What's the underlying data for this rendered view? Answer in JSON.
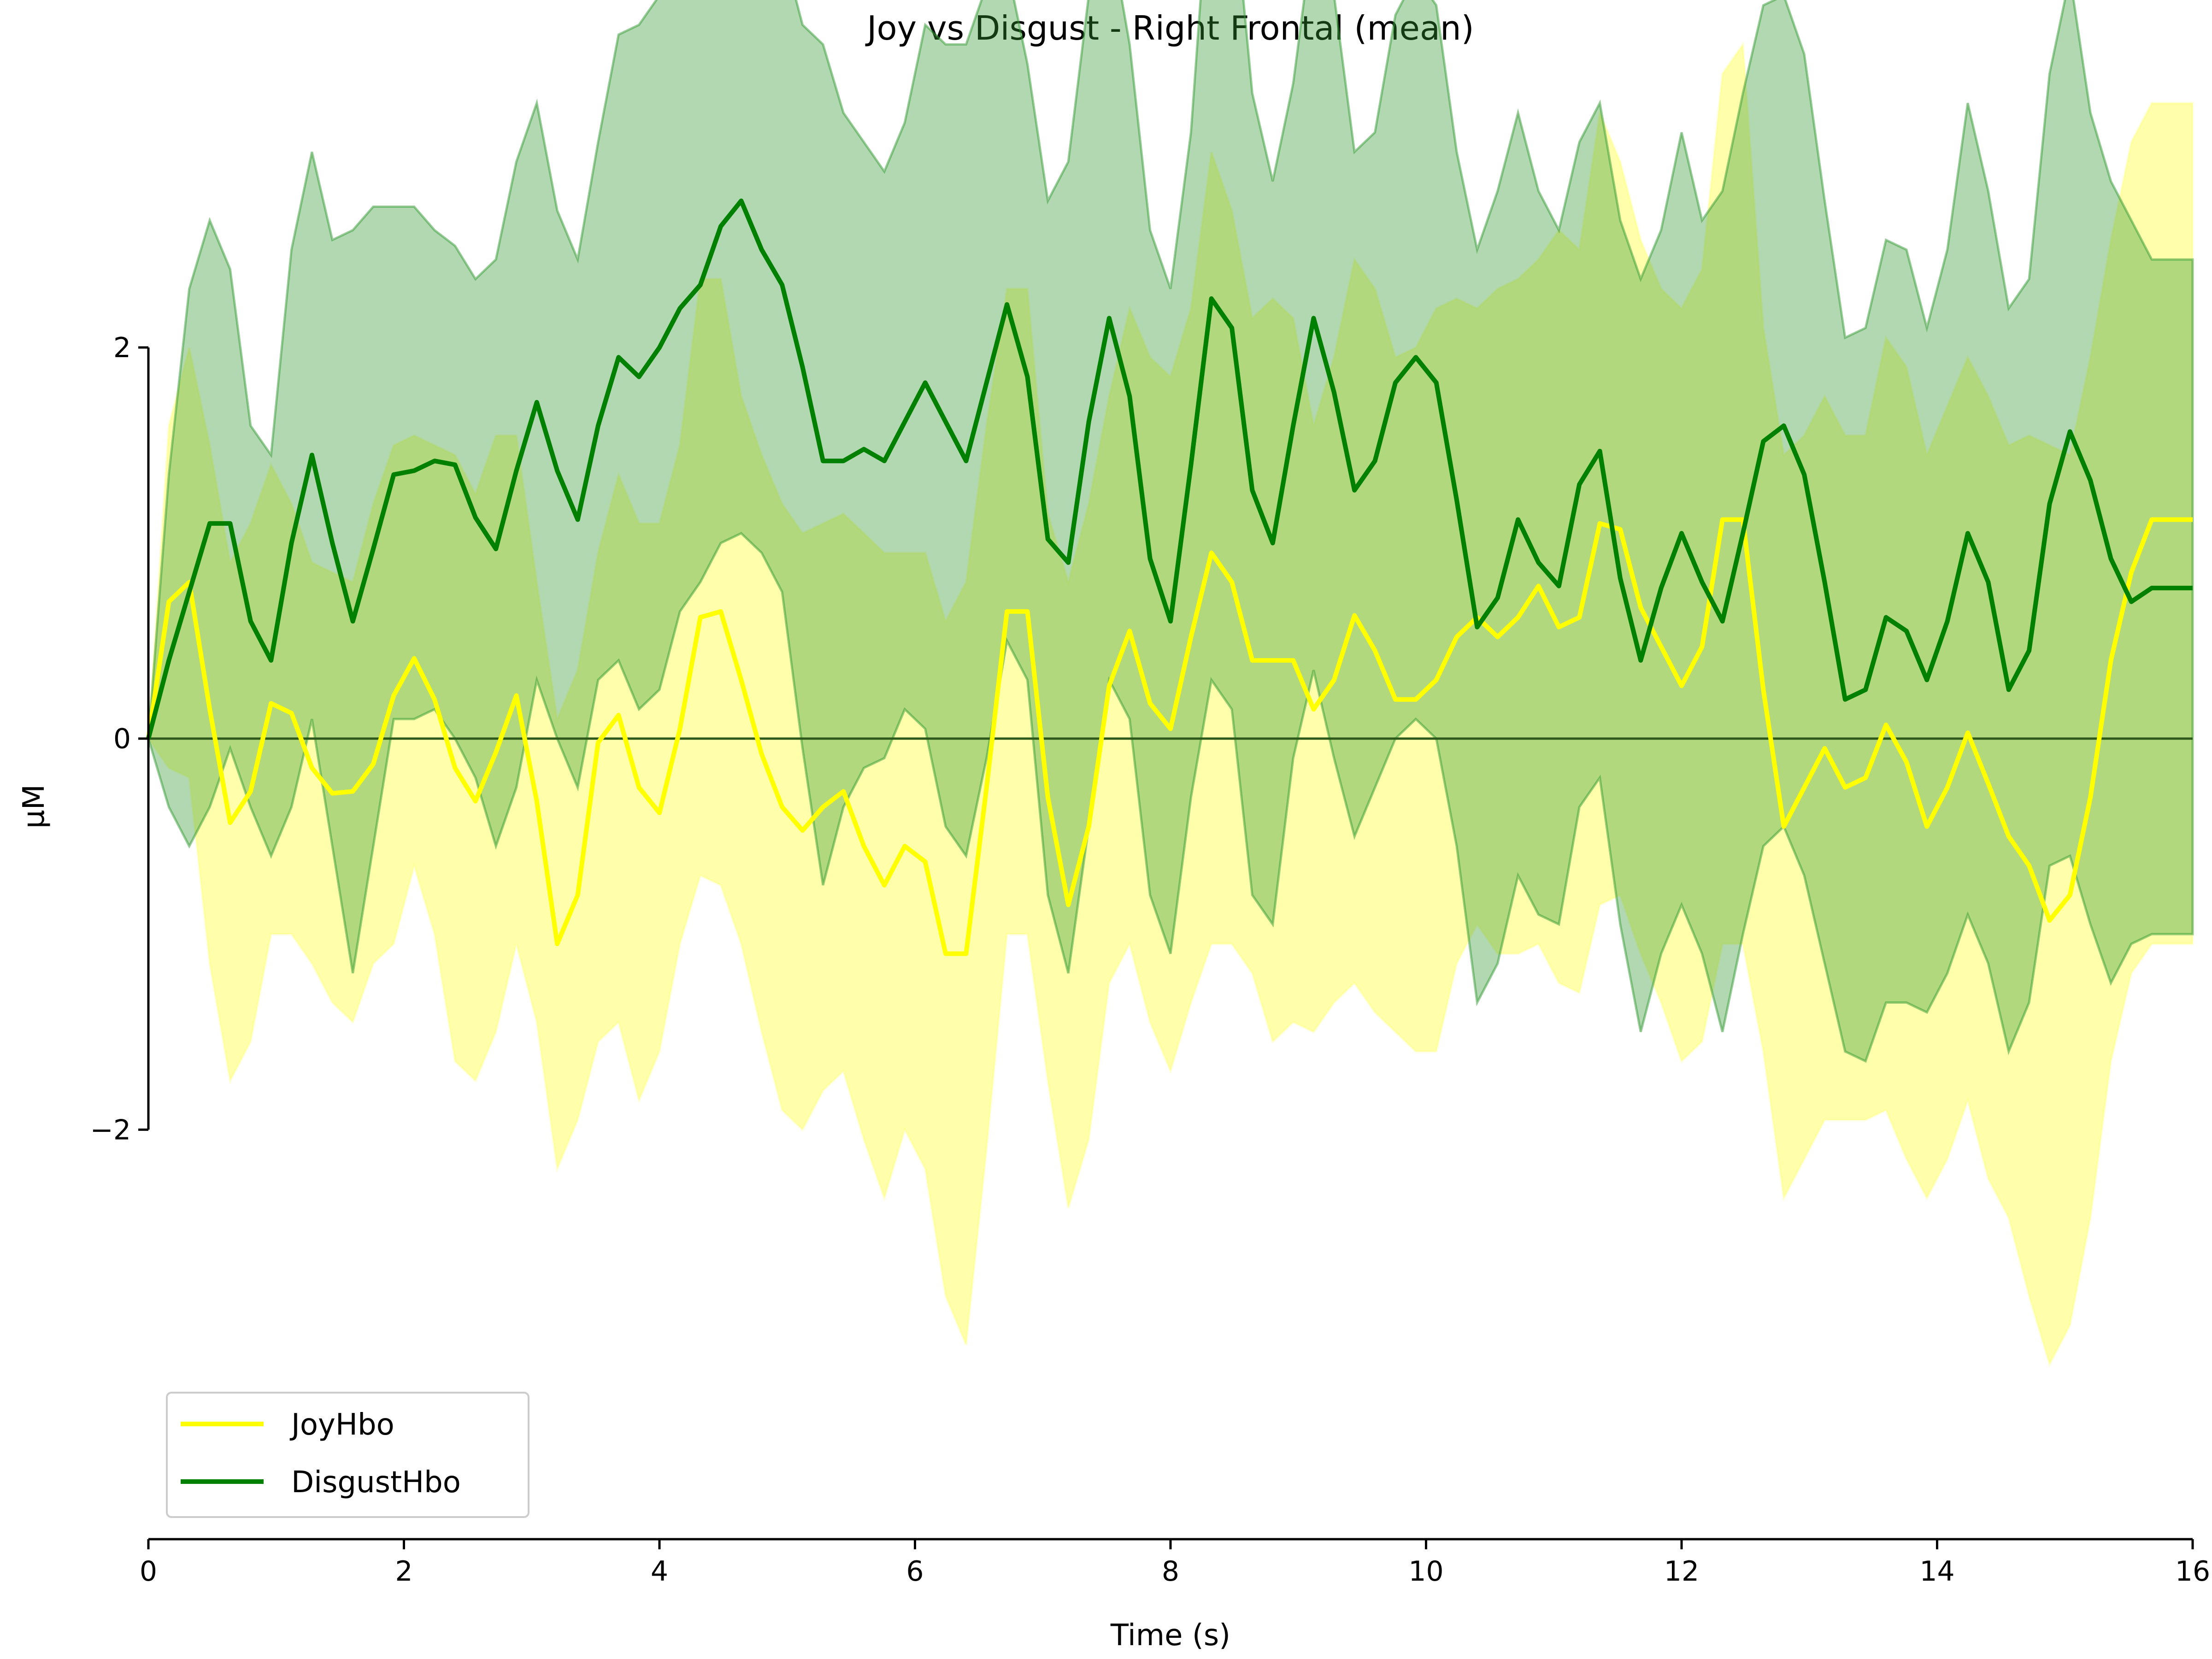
{
  "chart_data": {
    "type": "line",
    "title": "Joy vs Disgust - Right Frontal (mean)",
    "xlabel": "Time (s)",
    "ylabel": "μM",
    "xlim": [
      0,
      16
    ],
    "ylim": [
      -4,
      3.4
    ],
    "x_ticks": [
      0,
      2,
      4,
      6,
      8,
      10,
      12,
      14,
      16
    ],
    "y_ticks": [
      -2,
      0,
      2
    ],
    "x_tick_labels": [
      "0",
      "2",
      "4",
      "6",
      "8",
      "10",
      "12",
      "14",
      "16"
    ],
    "y_tick_labels": [
      "−2",
      "0",
      "2"
    ],
    "zero_line": true,
    "legend_position": "lower-left",
    "series": [
      {
        "name": "JoyHbo",
        "color": "#ffff00",
        "band_color": "#ffff66",
        "x": [
          0.0,
          0.16,
          0.32,
          0.48,
          0.64,
          0.8,
          0.96,
          1.12,
          1.28,
          1.44,
          1.6,
          1.76,
          1.92,
          2.08,
          2.24,
          2.4,
          2.56,
          2.72,
          2.88,
          3.04,
          3.2,
          3.36,
          3.52,
          3.68,
          3.84,
          4.0,
          4.16,
          4.32,
          4.48,
          4.64,
          4.8,
          4.96,
          5.12,
          5.28,
          5.44,
          5.6,
          5.76,
          5.92,
          6.08,
          6.24,
          6.4,
          6.56,
          6.72,
          6.88,
          7.04,
          7.2,
          7.36,
          7.52,
          7.68,
          7.84,
          8.0,
          8.16,
          8.32,
          8.48,
          8.64,
          8.8,
          8.96,
          9.12,
          9.28,
          9.44,
          9.6,
          9.76,
          9.92,
          10.08,
          10.24,
          10.4,
          10.56,
          10.72,
          10.88,
          11.04,
          11.2,
          11.36,
          11.52,
          11.68,
          11.84,
          12.0,
          12.16,
          12.32,
          12.48,
          12.64,
          12.8,
          12.96,
          13.12,
          13.28,
          13.44,
          13.6,
          13.76,
          13.92,
          14.08,
          14.24,
          14.4,
          14.56,
          14.72,
          14.88,
          15.04,
          15.2,
          15.36,
          15.52,
          15.68,
          15.84,
          16.0
        ],
        "mean": [
          0.0,
          0.7,
          0.8,
          0.15,
          -0.43,
          -0.27,
          0.18,
          0.13,
          -0.15,
          -0.28,
          -0.27,
          -0.13,
          0.22,
          0.41,
          0.2,
          -0.15,
          -0.32,
          -0.07,
          0.22,
          -0.32,
          -1.05,
          -0.8,
          -0.02,
          0.12,
          -0.25,
          -0.38,
          0.05,
          0.62,
          0.65,
          0.3,
          -0.08,
          -0.35,
          -0.47,
          -0.35,
          -0.27,
          -0.55,
          -0.75,
          -0.55,
          -0.63,
          -1.1,
          -1.1,
          -0.25,
          0.65,
          0.65,
          -0.3,
          -0.85,
          -0.45,
          0.27,
          0.55,
          0.18,
          0.05,
          0.52,
          0.95,
          0.8,
          0.4,
          0.4,
          0.4,
          0.15,
          0.3,
          0.63,
          0.45,
          0.2,
          0.2,
          0.3,
          0.52,
          0.62,
          0.52,
          0.62,
          0.78,
          0.57,
          0.62,
          1.1,
          1.07,
          0.67,
          0.47,
          0.27,
          0.47,
          1.12,
          1.12,
          0.25,
          -0.45,
          -0.25,
          -0.05,
          -0.25,
          -0.2,
          0.07,
          -0.12,
          -0.45,
          -0.25,
          0.03,
          -0.23,
          -0.5,
          -0.65,
          -0.93,
          -0.8,
          -0.3,
          0.4,
          0.85,
          1.12,
          1.12,
          1.12
        ],
        "upper": [
          0.0,
          1.6,
          2.0,
          1.5,
          0.9,
          1.1,
          1.4,
          1.2,
          0.9,
          0.85,
          0.8,
          1.2,
          1.5,
          1.55,
          1.5,
          1.45,
          1.25,
          1.55,
          1.55,
          0.8,
          0.1,
          0.35,
          0.95,
          1.35,
          1.1,
          1.1,
          1.5,
          2.35,
          2.35,
          1.75,
          1.45,
          1.2,
          1.05,
          1.1,
          1.15,
          1.05,
          0.95,
          0.95,
          0.95,
          0.6,
          0.8,
          1.6,
          2.3,
          2.3,
          1.15,
          0.8,
          1.2,
          1.75,
          2.2,
          1.95,
          1.85,
          2.2,
          3.0,
          2.7,
          2.15,
          2.25,
          2.15,
          1.6,
          1.95,
          2.45,
          2.3,
          1.95,
          2.0,
          2.2,
          2.25,
          2.2,
          2.3,
          2.35,
          2.45,
          2.6,
          2.5,
          3.2,
          2.95,
          2.55,
          2.3,
          2.2,
          2.4,
          3.4,
          3.55,
          2.1,
          1.45,
          1.55,
          1.75,
          1.55,
          1.55,
          2.05,
          1.9,
          1.45,
          1.7,
          1.95,
          1.75,
          1.5,
          1.55,
          1.5,
          1.45,
          1.95,
          2.55,
          3.05,
          3.25,
          3.25,
          3.25
        ],
        "lower": [
          0.0,
          -0.15,
          -0.2,
          -1.15,
          -1.75,
          -1.55,
          -1.0,
          -1.0,
          -1.15,
          -1.35,
          -1.45,
          -1.15,
          -1.05,
          -0.65,
          -1.0,
          -1.65,
          -1.75,
          -1.5,
          -1.05,
          -1.45,
          -2.2,
          -1.95,
          -1.55,
          -1.45,
          -1.85,
          -1.6,
          -1.05,
          -0.7,
          -0.75,
          -1.05,
          -1.5,
          -1.9,
          -2.0,
          -1.8,
          -1.7,
          -2.05,
          -2.35,
          -2.0,
          -2.2,
          -2.85,
          -3.1,
          -2.1,
          -1.0,
          -1.0,
          -1.75,
          -2.4,
          -2.05,
          -1.25,
          -1.05,
          -1.45,
          -1.7,
          -1.35,
          -1.05,
          -1.05,
          -1.2,
          -1.55,
          -1.45,
          -1.5,
          -1.35,
          -1.25,
          -1.4,
          -1.5,
          -1.6,
          -1.6,
          -1.15,
          -0.95,
          -1.1,
          -1.1,
          -1.05,
          -1.25,
          -1.3,
          -0.85,
          -0.8,
          -1.1,
          -1.35,
          -1.65,
          -1.55,
          -1.05,
          -1.05,
          -1.6,
          -2.35,
          -2.15,
          -1.95,
          -1.95,
          -1.95,
          -1.9,
          -2.15,
          -2.35,
          -2.15,
          -1.85,
          -2.25,
          -2.45,
          -2.85,
          -3.2,
          -3.0,
          -2.45,
          -1.65,
          -1.2,
          -1.05,
          -1.05,
          -1.05
        ]
      },
      {
        "name": "DisgustHbo",
        "color": "#008000",
        "band_color": "#339933",
        "x": [
          0.0,
          0.16,
          0.32,
          0.48,
          0.64,
          0.8,
          0.96,
          1.12,
          1.28,
          1.44,
          1.6,
          1.76,
          1.92,
          2.08,
          2.24,
          2.4,
          2.56,
          2.72,
          2.88,
          3.04,
          3.2,
          3.36,
          3.52,
          3.68,
          3.84,
          4.0,
          4.16,
          4.32,
          4.48,
          4.64,
          4.8,
          4.96,
          5.12,
          5.28,
          5.44,
          5.6,
          5.76,
          5.92,
          6.08,
          6.24,
          6.4,
          6.56,
          6.72,
          6.88,
          7.04,
          7.2,
          7.36,
          7.52,
          7.68,
          7.84,
          8.0,
          8.16,
          8.32,
          8.48,
          8.64,
          8.8,
          8.96,
          9.12,
          9.28,
          9.44,
          9.6,
          9.76,
          9.92,
          10.08,
          10.24,
          10.4,
          10.56,
          10.72,
          10.88,
          11.04,
          11.2,
          11.36,
          11.52,
          11.68,
          11.84,
          12.0,
          12.16,
          12.32,
          12.48,
          12.64,
          12.8,
          12.96,
          13.12,
          13.28,
          13.44,
          13.6,
          13.76,
          13.92,
          14.08,
          14.24,
          14.4,
          14.56,
          14.72,
          14.88,
          15.04,
          15.2,
          15.36,
          15.52,
          15.68,
          15.84,
          16.0
        ],
        "mean": [
          0.0,
          0.4,
          0.75,
          1.1,
          1.1,
          0.6,
          0.4,
          1.0,
          1.45,
          1.0,
          0.6,
          0.97,
          1.35,
          1.37,
          1.42,
          1.4,
          1.13,
          0.97,
          1.37,
          1.72,
          1.37,
          1.12,
          1.6,
          1.95,
          1.85,
          2.0,
          2.2,
          2.32,
          2.62,
          2.75,
          2.5,
          2.32,
          1.9,
          1.42,
          1.42,
          1.48,
          1.42,
          1.62,
          1.82,
          1.62,
          1.42,
          1.82,
          2.22,
          1.85,
          1.02,
          0.9,
          1.62,
          2.15,
          1.75,
          0.92,
          0.6,
          1.4,
          2.25,
          2.1,
          1.27,
          1.0,
          1.6,
          2.15,
          1.77,
          1.27,
          1.42,
          1.82,
          1.95,
          1.82,
          1.22,
          0.57,
          0.72,
          1.12,
          0.9,
          0.78,
          1.3,
          1.47,
          0.82,
          0.4,
          0.77,
          1.05,
          0.8,
          0.6,
          1.05,
          1.52,
          1.6,
          1.35,
          0.8,
          0.2,
          0.25,
          0.62,
          0.55,
          0.3,
          0.6,
          1.05,
          0.8,
          0.25,
          0.45,
          1.2,
          1.57,
          1.32,
          0.92,
          0.7,
          0.77,
          0.77,
          0.77
        ],
        "upper": [
          0.0,
          1.35,
          2.3,
          2.65,
          2.4,
          1.6,
          1.45,
          2.5,
          3.0,
          2.55,
          2.6,
          2.72,
          2.72,
          2.72,
          2.6,
          2.52,
          2.35,
          2.45,
          2.95,
          3.25,
          2.7,
          2.45,
          3.05,
          3.6,
          3.65,
          3.8,
          3.85,
          3.95,
          4.5,
          4.72,
          4.3,
          4.05,
          3.65,
          3.55,
          3.2,
          3.05,
          2.9,
          3.15,
          3.65,
          3.55,
          3.55,
          3.85,
          3.95,
          3.45,
          2.75,
          2.95,
          3.8,
          4.15,
          3.55,
          2.6,
          2.3,
          3.1,
          4.55,
          4.4,
          3.3,
          2.85,
          3.35,
          4.15,
          3.8,
          3.0,
          3.1,
          3.7,
          3.9,
          3.75,
          3.0,
          2.5,
          2.8,
          3.2,
          2.8,
          2.6,
          3.05,
          3.25,
          2.65,
          2.35,
          2.6,
          3.1,
          2.65,
          2.8,
          3.3,
          3.75,
          3.8,
          3.5,
          2.75,
          2.05,
          2.1,
          2.55,
          2.5,
          2.1,
          2.5,
          3.25,
          2.8,
          2.2,
          2.35,
          3.4,
          3.9,
          3.2,
          2.85,
          2.65,
          2.45,
          2.45,
          2.45
        ],
        "lower": [
          0.0,
          -0.35,
          -0.55,
          -0.35,
          -0.05,
          -0.35,
          -0.6,
          -0.35,
          0.1,
          -0.55,
          -1.2,
          -0.55,
          0.1,
          0.1,
          0.15,
          0.0,
          -0.2,
          -0.55,
          -0.25,
          0.3,
          0.0,
          -0.25,
          0.3,
          0.4,
          0.15,
          0.25,
          0.65,
          0.8,
          1.0,
          1.05,
          0.95,
          0.75,
          -0.05,
          -0.75,
          -0.35,
          -0.15,
          -0.1,
          0.15,
          0.05,
          -0.45,
          -0.6,
          -0.1,
          0.5,
          0.3,
          -0.8,
          -1.2,
          -0.45,
          0.3,
          0.1,
          -0.8,
          -1.1,
          -0.3,
          0.3,
          0.15,
          -0.8,
          -0.95,
          -0.1,
          0.35,
          -0.1,
          -0.5,
          -0.25,
          0.0,
          0.1,
          0.0,
          -0.55,
          -1.35,
          -1.15,
          -0.7,
          -0.9,
          -0.95,
          -0.35,
          -0.2,
          -0.95,
          -1.5,
          -1.1,
          -0.85,
          -1.1,
          -1.5,
          -1.0,
          -0.55,
          -0.45,
          -0.7,
          -1.15,
          -1.6,
          -1.65,
          -1.35,
          -1.35,
          -1.4,
          -1.2,
          -0.9,
          -1.15,
          -1.6,
          -1.35,
          -0.65,
          -0.6,
          -0.95,
          -1.25,
          -1.05,
          -1.0,
          -1.0,
          -1.0
        ]
      }
    ]
  }
}
